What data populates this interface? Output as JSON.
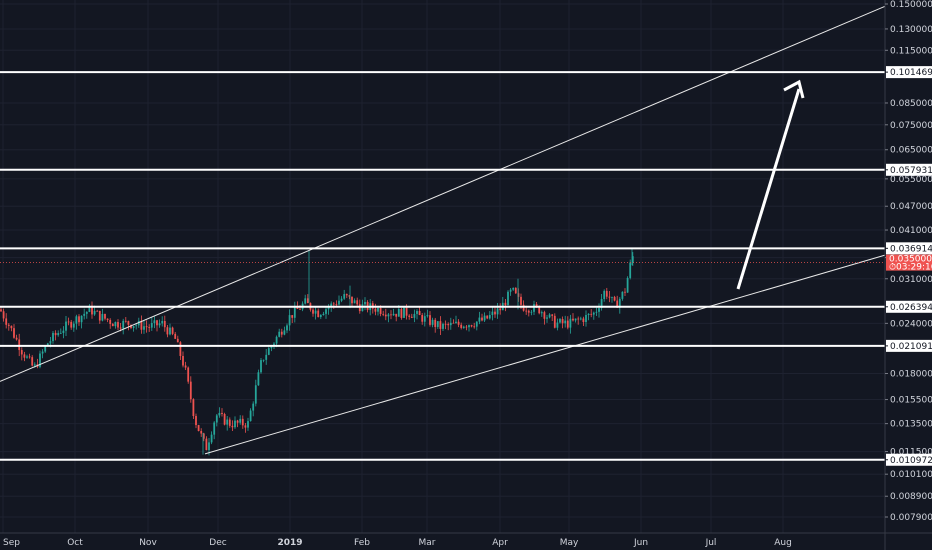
{
  "chart_data": {
    "type": "candlestick",
    "y_scale": "log",
    "ylim": [
      0.0075,
      0.155
    ],
    "grid": true,
    "y_ticks": [
      "0.150000",
      "0.130000",
      "0.115000",
      "0.101469",
      "0.085000",
      "0.075000",
      "0.065000",
      "0.057931",
      "0.055000",
      "0.047000",
      "0.041000",
      "0.036914",
      "0.035000",
      "0.031000",
      "0.026394",
      "0.024000",
      "0.021091",
      "0.018000",
      "0.015500",
      "0.013500",
      "0.011500",
      "0.010972",
      "0.010100",
      "0.008900",
      "0.007900"
    ],
    "x_labels": [
      "Sep",
      "Oct",
      "Nov",
      "Dec",
      "2019",
      "Feb",
      "Mar",
      "Apr",
      "May",
      "Jun",
      "Jul",
      "Aug"
    ],
    "horizontal_levels": [
      "0.101469",
      "0.057931",
      "0.036914",
      "0.026394",
      "0.021091",
      "0.010972"
    ],
    "current_price_label": "0.035000",
    "countdown_label": "03:29:16",
    "colors": {
      "background": "#131722",
      "up": "#26a69a",
      "down": "#ef5350",
      "levels": "#ffffff",
      "grid": "#1e2230",
      "price_line": "#ef5350"
    }
  }
}
